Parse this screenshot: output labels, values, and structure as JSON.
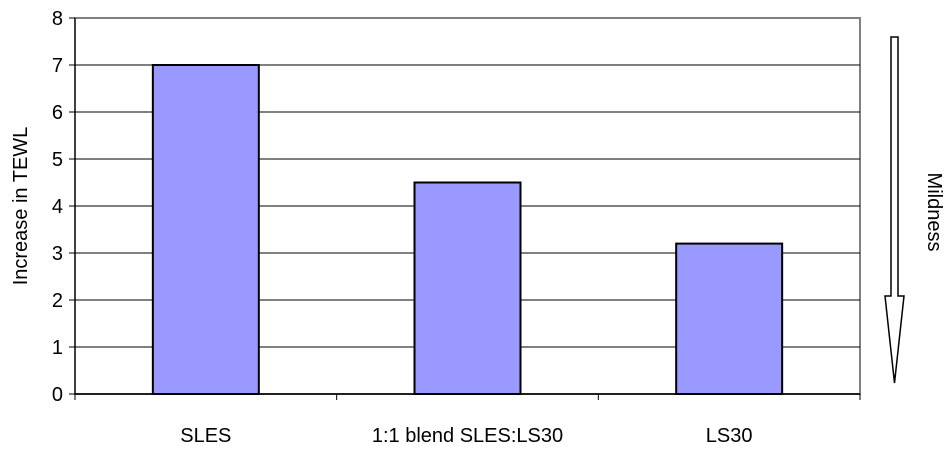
{
  "chart_data": {
    "type": "bar",
    "categories": [
      "SLES",
      "1:1 blend SLES:LS30",
      "LS30"
    ],
    "values": [
      7.0,
      4.5,
      3.2
    ],
    "title": "",
    "xlabel": "",
    "ylabel": "Increase in TEWL",
    "ylim": [
      0,
      8
    ],
    "yticks": [
      0,
      1,
      2,
      3,
      4,
      5,
      6,
      7,
      8
    ],
    "grid": true,
    "bar_color": "#9999ff",
    "annotation": {
      "label": "Mildness",
      "arrow_direction": "down"
    }
  }
}
